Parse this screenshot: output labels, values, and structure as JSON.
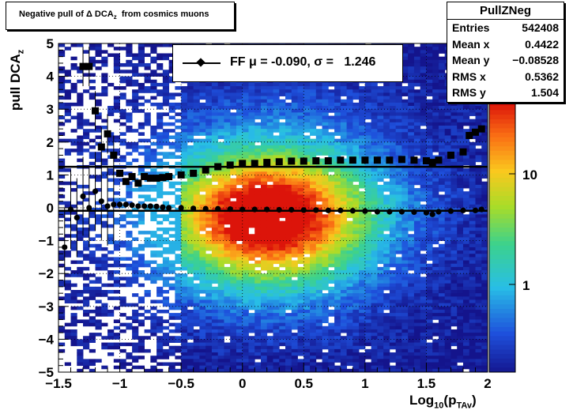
{
  "title": {
    "text": "Negative pull of Δ DCA",
    "sub": "z",
    "suffix": "  from cosmics muons"
  },
  "stats": {
    "name": "PullZNeg",
    "rows": [
      {
        "key": "Entries",
        "value": "542408"
      },
      {
        "key": "Mean x",
        "value": "0.4422"
      },
      {
        "key": "Mean y",
        "value": "−0.08528"
      },
      {
        "key": "RMS x",
        "value": "0.5362"
      },
      {
        "key": "RMS y",
        "value": "1.504"
      }
    ]
  },
  "legend": {
    "text": "FF μ = -0.090, σ =   1.246"
  },
  "colors": {
    "hot": "#e01010",
    "cold": "#1010c0",
    "axis": "#000000"
  },
  "chart_data": {
    "type": "heatmap",
    "xlabel_main": "Log",
    "xlabel_sub1": "10",
    "xlabel_mid": "(p",
    "xlabel_sub2": "TAv",
    "xlabel_end": ")",
    "ylabel_main": "pull DCA",
    "ylabel_sub": "z",
    "xlim": [
      -1.5,
      2.0
    ],
    "ylim": [
      -5,
      5
    ],
    "xticks": [
      "−1.5",
      "−1",
      "−0.5",
      "0",
      "0.5",
      "1",
      "1.5",
      "2"
    ],
    "yticks": [
      "5",
      "4",
      "3",
      "2",
      "1",
      "0",
      "−1",
      "−2",
      "−3",
      "−4",
      "−5"
    ],
    "zscale": "log",
    "zticks": [
      "10",
      "1"
    ],
    "grid": true,
    "density_peak": {
      "x": 0.2,
      "y": -0.3
    },
    "series": [
      {
        "name": "mean",
        "marker": "circle",
        "x": [
          -1.45,
          -1.4,
          -1.35,
          -1.3,
          -1.25,
          -1.2,
          -1.15,
          -1.1,
          -1.05,
          -1.0,
          -0.95,
          -0.9,
          -0.85,
          -0.8,
          -0.75,
          -0.7,
          -0.65,
          -0.6,
          -0.5,
          -0.4,
          -0.3,
          -0.2,
          -0.1,
          0.0,
          0.1,
          0.2,
          0.3,
          0.4,
          0.5,
          0.6,
          0.7,
          0.8,
          0.9,
          1.0,
          1.1,
          1.2,
          1.3,
          1.4,
          1.5,
          1.55,
          1.6,
          1.7,
          1.8,
          1.9,
          1.95
        ],
        "y": [
          -1.2,
          -0.05,
          -0.3,
          0.35,
          0.0,
          0.5,
          0.2,
          0.05,
          0.1,
          0.1,
          0.1,
          0.08,
          0.05,
          0.05,
          0.05,
          0.04,
          0.02,
          0.0,
          0.0,
          -0.02,
          -0.03,
          -0.03,
          -0.04,
          -0.05,
          -0.05,
          -0.05,
          -0.06,
          -0.06,
          -0.07,
          -0.07,
          -0.08,
          -0.08,
          -0.09,
          -0.1,
          -0.12,
          -0.12,
          -0.12,
          -0.13,
          -0.15,
          -0.2,
          -0.12,
          -0.1,
          -0.08,
          -0.08,
          -0.05
        ]
      },
      {
        "name": "sigma",
        "marker": "square",
        "x": [
          -1.3,
          -1.25,
          -1.2,
          -1.15,
          -1.1,
          -1.05,
          -1.0,
          -0.95,
          -0.9,
          -0.85,
          -0.8,
          -0.75,
          -0.7,
          -0.65,
          -0.6,
          -0.5,
          -0.4,
          -0.3,
          -0.2,
          -0.1,
          0.0,
          0.1,
          0.2,
          0.3,
          0.4,
          0.5,
          0.6,
          0.7,
          0.8,
          0.9,
          1.0,
          1.1,
          1.2,
          1.3,
          1.4,
          1.5,
          1.55,
          1.6,
          1.7,
          1.8,
          1.85,
          1.9,
          1.95
        ],
        "y": [
          4.3,
          4.3,
          2.95,
          1.85,
          2.25,
          1.6,
          1.05,
          0.8,
          0.95,
          0.75,
          0.95,
          0.9,
          0.9,
          0.92,
          0.95,
          1.0,
          1.05,
          1.15,
          1.25,
          1.3,
          1.35,
          1.35,
          1.38,
          1.4,
          1.42,
          1.42,
          1.43,
          1.43,
          1.45,
          1.45,
          1.45,
          1.45,
          1.45,
          1.47,
          1.45,
          1.43,
          1.38,
          1.45,
          1.6,
          1.7,
          2.2,
          2.3,
          2.4
        ]
      }
    ],
    "fit_lines": [
      1.246,
      -0.09
    ]
  }
}
